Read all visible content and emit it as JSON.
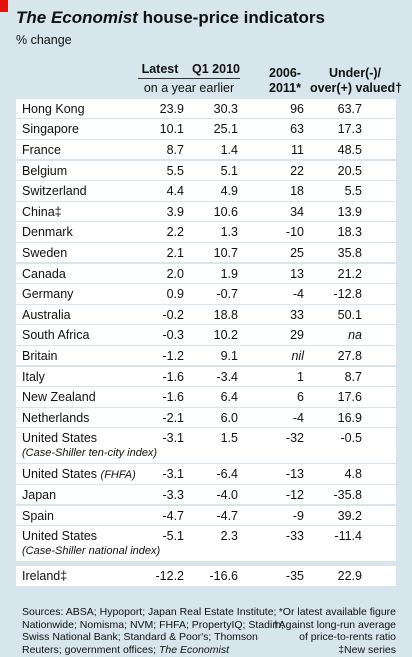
{
  "header": {
    "title_publication": "The Economist",
    "title": "house-price indicators",
    "subtitle": "% change",
    "columns": {
      "latest": "Latest",
      "q1": "Q1 2010",
      "span": "on a year earlier",
      "period": [
        "2006-",
        "2011*"
      ],
      "valued": [
        "Under(-)/",
        "over(+) valued†"
      ]
    }
  },
  "table": {
    "rows": [
      {
        "name": "Hong Kong",
        "values": [
          "23.9",
          "30.3",
          "96",
          "63.7"
        ]
      },
      {
        "name": "Singapore",
        "values": [
          "10.1",
          "25.1",
          "63",
          "17.3"
        ]
      },
      {
        "name": "France",
        "values": [
          "8.7",
          "1.4",
          "11",
          "48.5"
        ]
      },
      {
        "name": "Belgium",
        "values": [
          "5.5",
          "5.1",
          "22",
          "20.5"
        ]
      },
      {
        "name": "Switzerland",
        "values": [
          "4.4",
          "4.9",
          "18",
          "5.5"
        ]
      },
      {
        "name": "China‡",
        "values": [
          "3.9",
          "10.6",
          "34",
          "13.9"
        ]
      },
      {
        "name": "Denmark",
        "values": [
          "2.2",
          "1.3",
          "-10",
          "18.3"
        ]
      },
      {
        "name": "Sweden",
        "values": [
          "2.1",
          "10.7",
          "25",
          "35.8"
        ]
      },
      {
        "name": "Canada",
        "values": [
          "2.0",
          "1.9",
          "13",
          "21.2"
        ]
      },
      {
        "name": "Germany",
        "values": [
          "0.9",
          "-0.7",
          "-4",
          "-12.8"
        ]
      },
      {
        "name": "Australia",
        "values": [
          "-0.2",
          "18.8",
          "33",
          "50.1"
        ]
      },
      {
        "name": "South Africa",
        "values": [
          "-0.3",
          "10.2",
          "29",
          "na"
        ]
      },
      {
        "name": "Britain",
        "values": [
          "-1.2",
          "9.1",
          "nil",
          "27.8"
        ]
      },
      {
        "name": "Italy",
        "values": [
          "-1.6",
          "-3.4",
          "1",
          "8.7"
        ]
      },
      {
        "name": "New Zealand",
        "values": [
          "-1.6",
          "6.4",
          "6",
          "17.6"
        ]
      },
      {
        "name": "Netherlands",
        "values": [
          "-2.1",
          "6.0",
          "-4",
          "16.9"
        ]
      },
      {
        "name": "United States",
        "sub": "(Case-Shiller ten-city index)",
        "values": [
          "-3.1",
          "1.5",
          "-32",
          "-0.5"
        ]
      },
      {
        "name": "United States",
        "inline": "(FHFA)",
        "values": [
          "-3.1",
          "-6.4",
          "-13",
          "4.8"
        ]
      },
      {
        "name": "Japan",
        "values": [
          "-3.3",
          "-4.0",
          "-12",
          "-35.8"
        ]
      },
      {
        "name": "Spain",
        "values": [
          "-4.7",
          "-4.7",
          "-9",
          "39.2"
        ]
      },
      {
        "name": "United States",
        "sub": "(Case-Shiller national index)",
        "values": [
          "-5.1",
          "2.3",
          "-33",
          "-11.4"
        ]
      },
      {
        "name": "Ireland‡",
        "values": [
          "-12.2",
          "-16.6",
          "-35",
          "22.9"
        ]
      }
    ]
  },
  "footer": {
    "sources": [
      "Sources: ABSA; Hypoport; Japan Real Estate Institute;",
      "Nationwide; Nomisma; NVM; FHFA; PropertyIQ; Stadim;",
      "Swiss National Bank; Standard & Poor's; Thomson",
      "Reuters; government offices;"
    ],
    "sources_publication": "The Economist",
    "notes": [
      "*Or latest available figure",
      "†Against long-run average",
      "of price-to-rents ratio",
      "‡New series"
    ]
  }
}
